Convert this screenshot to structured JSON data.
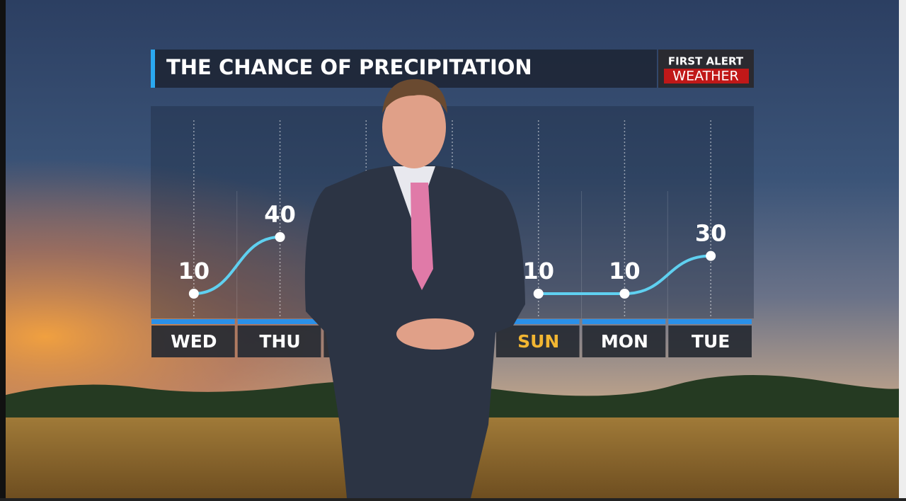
{
  "chart_data": {
    "type": "line",
    "title": "THE CHANCE OF PRECIPITATION",
    "logo": [
      "FIRST ALERT",
      "WEATHER"
    ],
    "categories": [
      "WED",
      "THU",
      null,
      null,
      "SUN",
      "MON",
      "TUE"
    ],
    "category_colors": [
      "#ffffff",
      "#ffffff",
      "#ffffff",
      "#ffffff",
      "#f2b632",
      "#ffffff",
      "#ffffff"
    ],
    "values": [
      10,
      40,
      null,
      null,
      10,
      10,
      30
    ],
    "color": "#5fd0f0"
  }
}
